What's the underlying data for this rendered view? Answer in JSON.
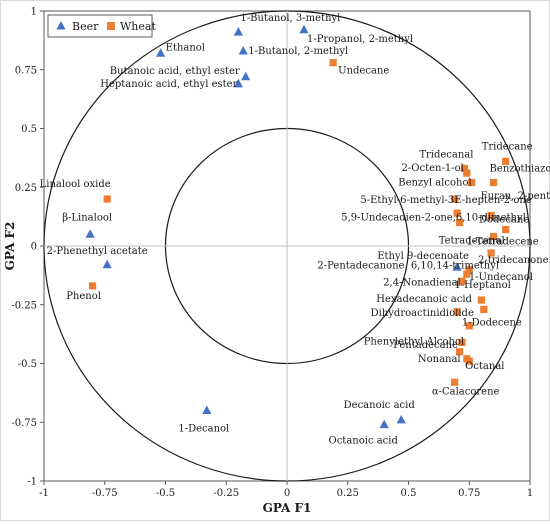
{
  "chart_data": {
    "type": "scatter",
    "xlabel": "GPA F1",
    "ylabel": "GPA F2",
    "xlim": [
      -1,
      1
    ],
    "ylim": [
      -1,
      1
    ],
    "xticks": [
      "-1",
      "-0.75",
      "-0.5",
      "-0.25",
      "0",
      "0.25",
      "0.5",
      "0.75",
      "1"
    ],
    "yticks": [
      "1",
      "0.75",
      "0.5",
      "0.25",
      "0",
      "-0.25",
      "-0.5",
      "-0.75",
      "-1"
    ],
    "circles": [
      1.0,
      0.5
    ],
    "legend": {
      "placement": "top-left",
      "frame": true
    },
    "colors": {
      "beer": "#4472C4",
      "wheat": "#ED7D31"
    },
    "series": [
      {
        "name": "Beer",
        "marker": "triangle",
        "points": [
          {
            "label": "1-Butanol, 3-methyl",
            "x": -0.2,
            "y": 0.91
          },
          {
            "label": "1-Propanol, 2-methyl",
            "x": 0.07,
            "y": 0.92
          },
          {
            "label": "1-Butanol, 2-methyl",
            "x": -0.18,
            "y": 0.83
          },
          {
            "label": "Ethanol",
            "x": -0.52,
            "y": 0.82
          },
          {
            "label": "Butanoic acid, ethyl ester",
            "x": -0.17,
            "y": 0.72
          },
          {
            "label": "Heptanoic acid, ethyl ester",
            "x": -0.2,
            "y": 0.69
          },
          {
            "label": "β-Linalool",
            "x": -0.81,
            "y": 0.05
          },
          {
            "label": "2-Phenethyl acetate",
            "x": -0.74,
            "y": -0.08
          },
          {
            "label": "1-Decanol",
            "x": -0.33,
            "y": -0.7
          },
          {
            "label": "Decanoic acid",
            "x": 0.47,
            "y": -0.74
          },
          {
            "label": "Octanoic acid",
            "x": 0.4,
            "y": -0.76
          },
          {
            "label": "Ethyl 9-decenoate",
            "x": 0.7,
            "y": -0.09
          }
        ]
      },
      {
        "name": "Wheat",
        "marker": "square",
        "points": [
          {
            "label": "Undecane",
            "x": 0.19,
            "y": 0.78
          },
          {
            "label": "Linalool oxide",
            "x": -0.74,
            "y": 0.2
          },
          {
            "label": "Phenol",
            "x": -0.8,
            "y": -0.17
          },
          {
            "label": "Tridecane",
            "x": 0.9,
            "y": 0.36
          },
          {
            "label": "Tridecanal",
            "x": 0.73,
            "y": 0.33
          },
          {
            "label": "2-Octen-1-ol",
            "x": 0.74,
            "y": 0.31
          },
          {
            "label": "Benzothiazole",
            "x": 0.85,
            "y": 0.27
          },
          {
            "label": "Benzyl alcohol",
            "x": 0.76,
            "y": 0.27
          },
          {
            "label": "Furan, 2-pentyl",
            "x": 0.69,
            "y": 0.2
          },
          {
            "label": "5-Ethyl-6-methyl-3E-hepten-2-one",
            "x": 0.7,
            "y": 0.14
          },
          {
            "label": "5,9-Undecadien-2-one,6,10-dimethyl",
            "x": 0.71,
            "y": 0.1
          },
          {
            "label": "Dodecane",
            "x": 0.84,
            "y": 0.13
          },
          {
            "label": "Tetradecanal",
            "x": 0.9,
            "y": 0.07
          },
          {
            "label": "1-Tetradecene",
            "x": 0.85,
            "y": 0.04
          },
          {
            "label": "2-tridecanone",
            "x": 0.84,
            "y": -0.03
          },
          {
            "label": "2-Pentadecanone, 6,10,14-trimethyl",
            "x": 0.75,
            "y": -0.1
          },
          {
            "label": "1-Undecanol",
            "x": 0.74,
            "y": -0.12
          },
          {
            "label": "2,4-Nonadienal",
            "x": 0.72,
            "y": -0.15
          },
          {
            "label": "1-Heptanol",
            "x": 0.8,
            "y": -0.23
          },
          {
            "label": "Hexadecanoic acid",
            "x": 0.7,
            "y": -0.28
          },
          {
            "label": "1-Dodecene",
            "x": 0.81,
            "y": -0.27
          },
          {
            "label": "Dihydroactinidiolide",
            "x": 0.75,
            "y": -0.34
          },
          {
            "label": "Phenylethyl Alcohol",
            "x": 0.72,
            "y": -0.41
          },
          {
            "label": "Pentadecane",
            "x": 0.71,
            "y": -0.45
          },
          {
            "label": "Nonanal",
            "x": 0.75,
            "y": -0.49
          },
          {
            "label": "Octanal",
            "x": 0.74,
            "y": -0.48
          },
          {
            "label": "α-Calacorene",
            "x": 0.69,
            "y": -0.58
          }
        ]
      }
    ]
  }
}
